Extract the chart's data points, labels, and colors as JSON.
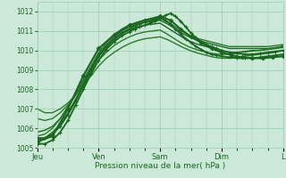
{
  "bg_color": "#cce8d8",
  "plot_bg_color": "#cce8d8",
  "grid_color": "#99ccaa",
  "line_color_dark": "#1a6620",
  "ylim": [
    1005,
    1012.5
  ],
  "yticks": [
    1005,
    1006,
    1007,
    1008,
    1009,
    1010,
    1011,
    1012
  ],
  "xlabel": "Pression niveau de la mer( hPa )",
  "xtick_labels": [
    "Jeu",
    "Ven",
    "Sam",
    "Dim",
    "L"
  ],
  "xtick_positions": [
    0,
    24,
    48,
    72,
    96
  ],
  "xlim": [
    0,
    96
  ],
  "series": [
    {
      "x": [
        0,
        3,
        6,
        9,
        12,
        15,
        18,
        21,
        24,
        27,
        30,
        33,
        36,
        39,
        42,
        45,
        48,
        51,
        54,
        57,
        60,
        63,
        66,
        69,
        72,
        75,
        78,
        81,
        84,
        87,
        90,
        93,
        96
      ],
      "y": [
        1005.8,
        1005.9,
        1006.1,
        1006.5,
        1007.1,
        1007.7,
        1008.4,
        1009.1,
        1009.8,
        1010.3,
        1010.7,
        1011.0,
        1011.2,
        1011.35,
        1011.45,
        1011.5,
        1011.55,
        1011.35,
        1011.1,
        1010.85,
        1010.65,
        1010.5,
        1010.4,
        1010.3,
        1010.2,
        1010.1,
        1010.1,
        1010.1,
        1010.1,
        1010.1,
        1010.1,
        1010.15,
        1010.2
      ],
      "color": "#1a6620",
      "lw": 1.0,
      "marker": null,
      "ms": 0
    },
    {
      "x": [
        0,
        3,
        6,
        9,
        12,
        15,
        18,
        21,
        24,
        27,
        30,
        33,
        36,
        39,
        42,
        45,
        48,
        51,
        54,
        57,
        60,
        63,
        66,
        69,
        72,
        75,
        78,
        81,
        84,
        87,
        90,
        93,
        96
      ],
      "y": [
        1005.4,
        1005.5,
        1005.8,
        1006.2,
        1006.8,
        1007.5,
        1008.2,
        1009.0,
        1009.7,
        1010.15,
        1010.55,
        1010.85,
        1011.05,
        1011.2,
        1011.3,
        1011.35,
        1011.4,
        1011.15,
        1010.9,
        1010.65,
        1010.45,
        1010.3,
        1010.2,
        1010.1,
        1010.0,
        1009.9,
        1009.9,
        1009.95,
        1010.0,
        1010.0,
        1010.05,
        1010.1,
        1010.15
      ],
      "color": "#1a6620",
      "lw": 1.0,
      "marker": null,
      "ms": 0
    },
    {
      "x": [
        0,
        3,
        6,
        9,
        12,
        15,
        18,
        21,
        24,
        27,
        30,
        33,
        36,
        39,
        42,
        45,
        48,
        51,
        54,
        57,
        60,
        63,
        66,
        69,
        72,
        75,
        78,
        81,
        84,
        87,
        90,
        93,
        96
      ],
      "y": [
        1005.6,
        1005.7,
        1006.0,
        1006.5,
        1007.1,
        1007.8,
        1008.5,
        1009.2,
        1009.9,
        1010.4,
        1010.8,
        1011.1,
        1011.3,
        1011.45,
        1011.55,
        1011.6,
        1011.65,
        1011.45,
        1011.2,
        1010.95,
        1010.75,
        1010.6,
        1010.5,
        1010.4,
        1010.3,
        1010.2,
        1010.2,
        1010.2,
        1010.2,
        1010.2,
        1010.2,
        1010.25,
        1010.3
      ],
      "color": "#2a7a2a",
      "lw": 1.0,
      "marker": null,
      "ms": 0
    },
    {
      "x": [
        0,
        3,
        6,
        9,
        12,
        15,
        18,
        21,
        24,
        27,
        30,
        33,
        36,
        39,
        42,
        45,
        48,
        50,
        53,
        56,
        59,
        62,
        65,
        68,
        71,
        72,
        74,
        77,
        80,
        83,
        86,
        89,
        92,
        95,
        96
      ],
      "y": [
        1006.5,
        1006.4,
        1006.5,
        1006.8,
        1007.2,
        1007.7,
        1008.3,
        1008.9,
        1009.5,
        1009.9,
        1010.25,
        1010.5,
        1010.7,
        1010.85,
        1010.95,
        1011.0,
        1011.05,
        1010.9,
        1010.65,
        1010.4,
        1010.2,
        1010.05,
        1009.95,
        1009.85,
        1009.8,
        1009.8,
        1009.8,
        1009.85,
        1009.9,
        1009.95,
        1010.0,
        1010.05,
        1010.1,
        1010.2,
        1010.25
      ],
      "color": "#2a7a2a",
      "lw": 1.0,
      "marker": null,
      "ms": 0
    },
    {
      "x": [
        0,
        3,
        6,
        9,
        12,
        15,
        18,
        21,
        24,
        27,
        30,
        33,
        36,
        39,
        42,
        45,
        48,
        51,
        54,
        57,
        60,
        63,
        66,
        69,
        72,
        75,
        78,
        81,
        84,
        87,
        90,
        93,
        96
      ],
      "y": [
        1007.0,
        1006.8,
        1006.8,
        1007.0,
        1007.3,
        1007.7,
        1008.2,
        1008.7,
        1009.2,
        1009.6,
        1009.9,
        1010.15,
        1010.35,
        1010.5,
        1010.6,
        1010.65,
        1010.7,
        1010.55,
        1010.35,
        1010.15,
        1009.98,
        1009.85,
        1009.75,
        1009.65,
        1009.6,
        1009.6,
        1009.65,
        1009.7,
        1009.75,
        1009.8,
        1009.85,
        1009.9,
        1010.0
      ],
      "color": "#2a7a2a",
      "lw": 1.0,
      "marker": null,
      "ms": 0
    },
    {
      "x": [
        0,
        3,
        6,
        9,
        12,
        15,
        18,
        21,
        24,
        27,
        30,
        33,
        36,
        38,
        40,
        42,
        44,
        46,
        48,
        50,
        52,
        54,
        56,
        58,
        60,
        62,
        64,
        66,
        68,
        70,
        72,
        75,
        78,
        81,
        84,
        87,
        90,
        93,
        96
      ],
      "y": [
        1005.5,
        1005.5,
        1005.7,
        1006.1,
        1006.7,
        1007.4,
        1008.2,
        1009.0,
        1009.7,
        1010.2,
        1010.6,
        1010.9,
        1011.1,
        1011.25,
        1011.35,
        1011.45,
        1011.5,
        1011.6,
        1011.7,
        1011.55,
        1011.35,
        1011.1,
        1010.85,
        1010.6,
        1010.4,
        1010.2,
        1010.05,
        1009.9,
        1009.8,
        1009.75,
        1009.7,
        1009.65,
        1009.6,
        1009.6,
        1009.6,
        1009.65,
        1009.7,
        1009.75,
        1009.8
      ],
      "color": "#1a6620",
      "lw": 1.3,
      "marker": "+",
      "ms": 3
    },
    {
      "x": [
        0,
        3,
        6,
        9,
        12,
        15,
        18,
        21,
        24,
        27,
        30,
        33,
        36,
        38,
        40,
        42,
        44,
        46,
        48,
        50,
        52,
        54,
        56,
        58,
        60,
        62,
        64,
        66,
        68,
        70,
        72,
        75,
        78,
        81,
        84,
        87,
        90,
        93,
        96
      ],
      "y": [
        1005.2,
        1005.2,
        1005.4,
        1005.8,
        1006.4,
        1007.2,
        1008.0,
        1008.8,
        1009.5,
        1010.05,
        1010.45,
        1010.75,
        1010.95,
        1011.1,
        1011.2,
        1011.3,
        1011.4,
        1011.5,
        1011.65,
        1011.8,
        1011.9,
        1011.75,
        1011.5,
        1011.2,
        1010.9,
        1010.65,
        1010.45,
        1010.3,
        1010.2,
        1010.1,
        1010.0,
        1009.9,
        1009.85,
        1009.8,
        1009.8,
        1009.85,
        1009.9,
        1009.95,
        1010.0
      ],
      "color": "#1a6620",
      "lw": 1.3,
      "marker": "+",
      "ms": 3
    },
    {
      "x": [
        0,
        6,
        12,
        18,
        24,
        30,
        36,
        42,
        48,
        52,
        56,
        60,
        64,
        68,
        72,
        76,
        80,
        84,
        88,
        92,
        96
      ],
      "y": [
        1005.3,
        1005.6,
        1007.0,
        1008.7,
        1010.1,
        1010.8,
        1011.3,
        1011.55,
        1011.75,
        1011.55,
        1011.1,
        1010.7,
        1010.4,
        1010.1,
        1009.9,
        1009.75,
        1009.65,
        1009.6,
        1009.6,
        1009.65,
        1009.7
      ],
      "color": "#1a6620",
      "lw": 1.5,
      "marker": "D",
      "ms": 2.5
    }
  ]
}
